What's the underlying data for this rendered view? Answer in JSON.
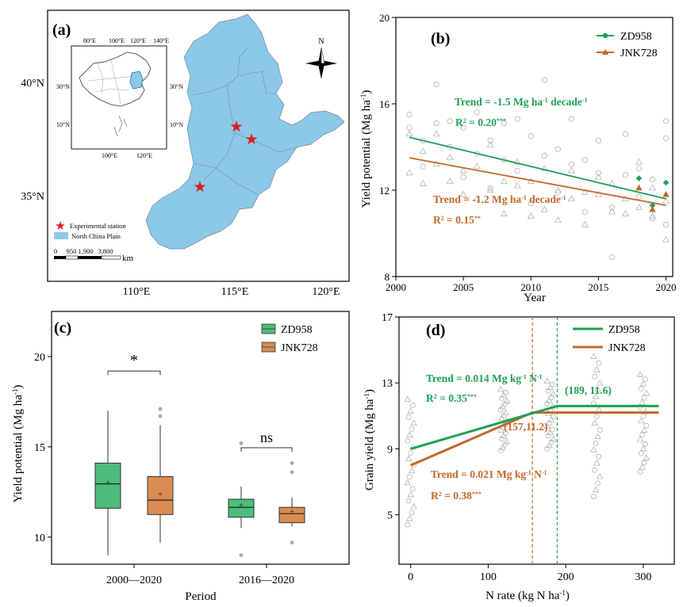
{
  "colors": {
    "zd": "#1fa055",
    "jnk": "#c2692a",
    "zd_fill": "#4cbd7a",
    "jnk_fill": "#d98b51",
    "map": "#8cc8e8",
    "star": "#d42020",
    "grey": "#b3b3b3"
  },
  "panel_a": {
    "label": "(a)",
    "lon_ticks": [
      "110°E",
      "115°E",
      "120°E"
    ],
    "lat_ticks": [
      "40°N",
      "35°N"
    ],
    "inset_top_ticks": [
      "80°E",
      "100°E",
      "120°E",
      "140°E"
    ],
    "inset_bottom_ticks": [
      "100°E",
      "120°E"
    ],
    "inset_left_ticks": [
      "30°N",
      "10°N"
    ],
    "inset_right_ticks": [
      "30°N",
      "10°N"
    ],
    "north": "N",
    "legend": {
      "station": "Experimental station",
      "region": "North China Plain"
    },
    "scale_labels": [
      "0",
      "950",
      "1,900",
      "3,800"
    ],
    "scale_unit": "km"
  },
  "chart_data": [
    {
      "panel": "(b)",
      "type": "scatter",
      "xlabel": "Year",
      "ylabel": "Yield potential (Mg ha",
      "ylabel_sup": "-1",
      "ylabel_close": ")",
      "xlim": [
        2000,
        2020.5
      ],
      "ylim": [
        8,
        20
      ],
      "xticks": [
        2000,
        2005,
        2010,
        2015,
        2020
      ],
      "yticks": [
        8,
        12,
        16,
        20
      ],
      "series": [
        {
          "name": "ZD958",
          "trend": [
            [
              2001,
              14.45
            ],
            [
              2020,
              11.6
            ]
          ],
          "points": [
            [
              2018,
              12.55
            ],
            [
              2019,
              11.3
            ],
            [
              2020,
              12.35
            ]
          ]
        },
        {
          "name": "JNK728",
          "trend": [
            [
              2001,
              13.5
            ],
            [
              2020,
              11.3
            ]
          ],
          "points": [
            [
              2018,
              12.1
            ],
            [
              2019,
              11.1
            ],
            [
              2020,
              11.8
            ]
          ]
        }
      ],
      "background_circles": [
        [
          2001,
          15.5
        ],
        [
          2001,
          14.9
        ],
        [
          2002,
          14.3
        ],
        [
          2002,
          13.1
        ],
        [
          2003,
          16.9
        ],
        [
          2003,
          15.1
        ],
        [
          2004,
          15.2
        ],
        [
          2004,
          14.0
        ],
        [
          2005,
          14.9
        ],
        [
          2005,
          12.6
        ],
        [
          2006,
          13.7
        ],
        [
          2006,
          15.6
        ],
        [
          2007,
          14.3
        ],
        [
          2007,
          12.1
        ],
        [
          2008,
          15.1
        ],
        [
          2008,
          13.4
        ],
        [
          2009,
          15.3
        ],
        [
          2009,
          12.9
        ],
        [
          2010,
          14.5
        ],
        [
          2010,
          11.4
        ],
        [
          2011,
          17.1
        ],
        [
          2011,
          13.6
        ],
        [
          2012,
          13.9
        ],
        [
          2012,
          11.9
        ],
        [
          2013,
          13.2
        ],
        [
          2013,
          15.3
        ],
        [
          2014,
          13.4
        ],
        [
          2014,
          11.0
        ],
        [
          2015,
          12.8
        ],
        [
          2015,
          14.3
        ],
        [
          2016,
          11.2
        ],
        [
          2016,
          8.9
        ],
        [
          2017,
          12.7
        ],
        [
          2017,
          14.6
        ],
        [
          2018,
          13.0
        ],
        [
          2018,
          11.7
        ],
        [
          2019,
          12.5
        ],
        [
          2019,
          10.7
        ],
        [
          2020,
          15.2
        ],
        [
          2020,
          14.4
        ],
        [
          2020,
          10.4
        ]
      ],
      "background_triangles": [
        [
          2001,
          14.6
        ],
        [
          2001,
          12.8
        ],
        [
          2002,
          13.8
        ],
        [
          2002,
          12.3
        ],
        [
          2003,
          13.2
        ],
        [
          2003,
          14.6
        ],
        [
          2004,
          12.4
        ],
        [
          2004,
          13.5
        ],
        [
          2005,
          12.9
        ],
        [
          2005,
          11.8
        ],
        [
          2006,
          13.1
        ],
        [
          2006,
          11.6
        ],
        [
          2007,
          12.0
        ],
        [
          2007,
          14.1
        ],
        [
          2008,
          12.4
        ],
        [
          2008,
          10.9
        ],
        [
          2009,
          12.2
        ],
        [
          2009,
          13.3
        ],
        [
          2010,
          10.8
        ],
        [
          2010,
          12.4
        ],
        [
          2011,
          11.1
        ],
        [
          2011,
          13.0
        ],
        [
          2012,
          12.0
        ],
        [
          2012,
          10.6
        ],
        [
          2013,
          11.6
        ],
        [
          2013,
          12.9
        ],
        [
          2014,
          10.4
        ],
        [
          2014,
          11.9
        ],
        [
          2015,
          11.8
        ],
        [
          2015,
          12.6
        ],
        [
          2016,
          11.0
        ],
        [
          2016,
          12.3
        ],
        [
          2017,
          10.9
        ],
        [
          2017,
          11.6
        ],
        [
          2018,
          11.2
        ],
        [
          2018,
          13.3
        ],
        [
          2019,
          10.8
        ],
        [
          2019,
          12.1
        ],
        [
          2020,
          9.7
        ],
        [
          2020,
          11.5
        ]
      ],
      "legend": [
        "ZD958",
        "JNK728"
      ],
      "annotations": {
        "zd_trend": "Trend = -1.5 Mg ha",
        "zd_trend_sup": "-1",
        "zd_trend_tail": " decade",
        "zd_trend_sup2": "-1",
        "zd_r2": "R",
        "zd_r2_sup": "2",
        "zd_r2_val": " = 0.20",
        "zd_r2_star": "***",
        "jnk_trend": "Trend = -1.2 Mg ha",
        "jnk_trend_sup": "-1",
        "jnk_trend_tail": " decade",
        "jnk_trend_sup2": "-1",
        "jnk_r2": "R",
        "jnk_r2_sup": "2",
        "jnk_r2_val": " = 0.15",
        "jnk_r2_star": "**"
      }
    },
    {
      "panel": "(c)",
      "type": "box",
      "xlabel": "Period",
      "ylabel": "Yield potential (Mg ha",
      "ylabel_sup": "-1",
      "ylabel_close": ")",
      "ylim": [
        8.5,
        22.5
      ],
      "yticks": [
        10,
        15,
        20
      ],
      "categories": [
        "2000—2020",
        "2016—2020"
      ],
      "series": [
        {
          "name": "ZD958",
          "boxes": [
            {
              "whisker_low": 9.0,
              "q1": 11.6,
              "median": 12.95,
              "q3": 14.1,
              "whisker_high": 17.0,
              "mean": 13.05,
              "outliers": []
            },
            {
              "whisker_low": 10.5,
              "q1": 11.1,
              "median": 11.65,
              "q3": 12.1,
              "whisker_high": 12.8,
              "mean": 11.8,
              "outliers": [
                15.2,
                9.0
              ]
            }
          ]
        },
        {
          "name": "JNK728",
          "boxes": [
            {
              "whisker_low": 9.7,
              "q1": 11.25,
              "median": 12.05,
              "q3": 13.35,
              "whisker_high": 16.2,
              "mean": 12.4,
              "outliers": [
                17.1,
                16.7
              ]
            },
            {
              "whisker_low": 10.6,
              "q1": 10.8,
              "median": 11.3,
              "q3": 11.65,
              "whisker_high": 12.2,
              "mean": 11.45,
              "outliers": [
                14.1,
                13.6,
                9.7
              ]
            }
          ]
        }
      ],
      "significance": [
        "*",
        "ns"
      ],
      "legend": [
        "ZD958",
        "JNK728"
      ]
    },
    {
      "panel": "(d)",
      "type": "line",
      "xlabel": "N rate (kg N ha",
      "xlabel_sup": "-1",
      "xlabel_close": ")",
      "ylabel": "Grain yield (Mg ha",
      "ylabel_sup": "-1",
      "ylabel_close": ")",
      "xlim": [
        -15,
        340
      ],
      "ylim": [
        2,
        17
      ],
      "xticks": [
        0,
        100,
        200,
        300
      ],
      "yticks": [
        5,
        9,
        13,
        17
      ],
      "n_levels": [
        0,
        120,
        180,
        240,
        300
      ],
      "series": [
        {
          "name": "ZD958",
          "line": [
            [
              0,
              9.0
            ],
            [
              189,
              11.6
            ],
            [
              320,
              11.6
            ]
          ],
          "breakpoint": 189
        },
        {
          "name": "JNK728",
          "line": [
            [
              0,
              8.0
            ],
            [
              157,
              11.2
            ],
            [
              320,
              11.2
            ]
          ],
          "breakpoint": 157
        }
      ],
      "legend": [
        "ZD958",
        "JNK728"
      ],
      "annotations": {
        "zd_point": "(189, 11.6)",
        "jnk_point": "(157,11.2)",
        "zd_trend": "Trend = 0.014 Mg kg",
        "zd_trend_sup": "-1",
        "zd_trend_tail": " N",
        "zd_trend_sup2": "-1",
        "zd_r2": "R",
        "zd_r2_sup": "2",
        "zd_r2_val": " = 0.35",
        "zd_r2_star": "***",
        "jnk_trend": "Trend = 0.021 Mg kg",
        "jnk_trend_sup": "-1",
        "jnk_trend_tail": " N",
        "jnk_trend_sup2": "-1",
        "jnk_r2": "R",
        "jnk_r2_sup": "2",
        "jnk_r2_val": " = 0.38",
        "jnk_r2_star": "***"
      }
    }
  ]
}
